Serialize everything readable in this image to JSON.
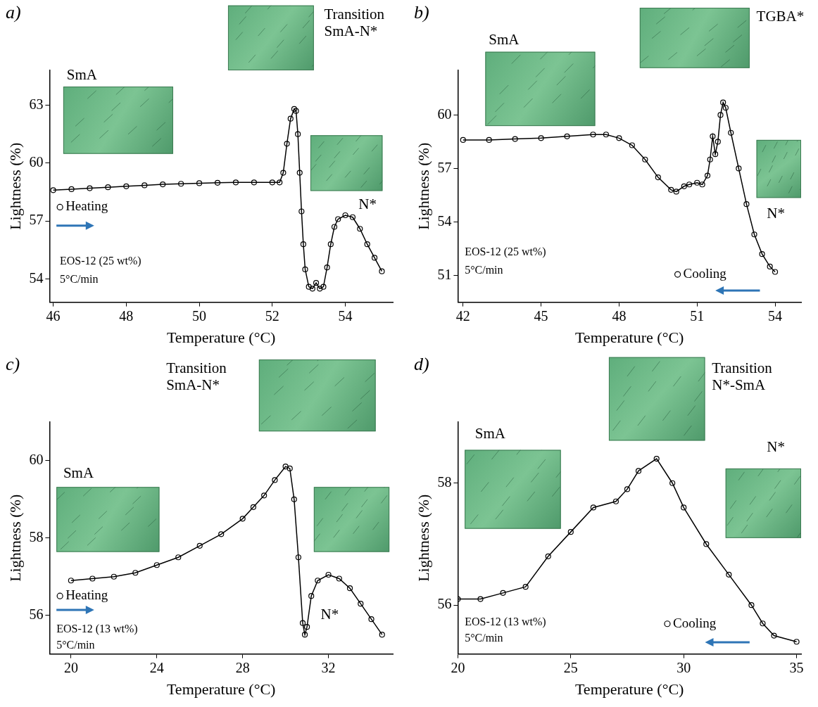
{
  "chart_data": [
    {
      "type": "scatter",
      "panel_label": "a)",
      "x_label": "Temperature (°C)",
      "y_label": "Lightness (%)",
      "xlim": [
        45.9,
        55.3
      ],
      "xticks": [
        46,
        48,
        50,
        52,
        54
      ],
      "ylim": [
        52.8,
        64.8
      ],
      "yticks": [
        54,
        57,
        60,
        63
      ],
      "grid": false,
      "annotations": [
        "SmA",
        "Transition SmA-N*",
        "N*",
        "EOS-12 (25 wt%)",
        "5°C/min"
      ],
      "series": [
        {
          "name": "Heating",
          "color": "#000000",
          "marker": "circle_open",
          "line_style": "solid",
          "x": [
            46,
            46.5,
            47,
            47.5,
            48,
            48.5,
            49,
            49.5,
            50,
            50.5,
            51,
            51.5,
            52,
            52.2,
            52.3,
            52.4,
            52.5,
            52.6,
            52.65,
            52.7,
            52.75,
            52.8,
            52.85,
            52.9,
            53.0,
            53.1,
            53.2,
            53.3,
            53.4,
            53.5,
            53.6,
            53.7,
            53.8,
            54.0,
            54.2,
            54.4,
            54.6,
            54.8,
            55
          ],
          "values": [
            58.6,
            58.65,
            58.7,
            58.75,
            58.8,
            58.85,
            58.9,
            58.93,
            58.96,
            58.98,
            59.0,
            59.0,
            59.0,
            59.0,
            59.5,
            61.0,
            62.3,
            62.8,
            62.7,
            61.5,
            59.5,
            57.5,
            55.8,
            54.5,
            53.6,
            53.5,
            53.8,
            53.5,
            53.6,
            54.6,
            55.8,
            56.7,
            57.1,
            57.3,
            57.2,
            56.6,
            55.8,
            55.1,
            54.4
          ]
        }
      ]
    },
    {
      "type": "scatter",
      "panel_label": "b)",
      "x_label": "Temperature (°C)",
      "y_label": "Lightness (%)",
      "xlim": [
        41.8,
        55
      ],
      "xticks": [
        42,
        45,
        48,
        51,
        54
      ],
      "ylim": [
        49.5,
        62.5
      ],
      "yticks": [
        51,
        54,
        57,
        60
      ],
      "grid": false,
      "annotations": [
        "SmA",
        "TGBA*",
        "N*",
        "EOS-12 (25 wt%)",
        "5°C/min"
      ],
      "series": [
        {
          "name": "Cooling",
          "color": "#000000",
          "marker": "circle_open",
          "line_style": "solid",
          "x": [
            42,
            43,
            44,
            45,
            46,
            47,
            47.5,
            48,
            48.5,
            49,
            49.5,
            50,
            50.2,
            50.5,
            50.7,
            51,
            51.2,
            51.4,
            51.5,
            51.6,
            51.7,
            51.8,
            51.9,
            52.0,
            52.1,
            52.3,
            52.6,
            52.9,
            53.2,
            53.5,
            53.8,
            54
          ],
          "values": [
            58.6,
            58.6,
            58.65,
            58.7,
            58.8,
            58.9,
            58.9,
            58.7,
            58.3,
            57.5,
            56.5,
            55.8,
            55.7,
            56.0,
            56.1,
            56.2,
            56.1,
            56.6,
            57.5,
            58.8,
            57.8,
            58.5,
            60.0,
            60.7,
            60.4,
            59.0,
            57.0,
            55.0,
            53.3,
            52.2,
            51.5,
            51.2
          ]
        }
      ]
    },
    {
      "type": "scatter",
      "panel_label": "c)",
      "x_label": "Temperature (°C)",
      "y_label": "Lightness (%)",
      "xlim": [
        19,
        35
      ],
      "xticks": [
        20,
        24,
        28,
        32
      ],
      "ylim": [
        55,
        61
      ],
      "yticks": [
        56,
        58,
        60
      ],
      "grid": false,
      "annotations": [
        "SmA",
        "Transition SmA-N*",
        "N*",
        "EOS-12 (13 wt%)",
        "5°C/min"
      ],
      "series": [
        {
          "name": "Heating",
          "color": "#000000",
          "marker": "circle_open",
          "line_style": "solid",
          "x": [
            20,
            21,
            22,
            23,
            24,
            25,
            26,
            27,
            28,
            28.5,
            29,
            29.5,
            30,
            30.2,
            30.4,
            30.6,
            30.8,
            30.9,
            31,
            31.2,
            31.5,
            32,
            32.5,
            33,
            33.5,
            34,
            34.5
          ],
          "values": [
            56.9,
            56.95,
            57.0,
            57.1,
            57.3,
            57.5,
            57.8,
            58.1,
            58.5,
            58.8,
            59.1,
            59.5,
            59.85,
            59.8,
            59.0,
            57.5,
            55.8,
            55.5,
            55.7,
            56.5,
            56.9,
            57.05,
            56.95,
            56.7,
            56.3,
            55.9,
            55.5
          ]
        }
      ]
    },
    {
      "type": "scatter",
      "panel_label": "d)",
      "x_label": "Temperature (°C)",
      "y_label": "Lightness (%)",
      "xlim": [
        20,
        35.2
      ],
      "xticks": [
        20,
        25,
        30,
        35
      ],
      "ylim": [
        55.2,
        59
      ],
      "yticks": [
        56,
        58
      ],
      "grid": false,
      "annotations": [
        "SmA",
        "Transition N*-SmA",
        "N*",
        "EOS-12 (13 wt%)",
        "5°C/min"
      ],
      "series": [
        {
          "name": "Cooling",
          "color": "#000000",
          "marker": "circle_open",
          "line_style": "solid",
          "x": [
            20,
            21,
            22,
            23,
            24,
            25,
            26,
            27,
            27.5,
            28,
            28.8,
            29.5,
            30,
            31,
            32,
            33,
            33.5,
            34,
            35
          ],
          "values": [
            56.1,
            56.1,
            56.2,
            56.3,
            56.8,
            57.2,
            57.6,
            57.7,
            57.9,
            58.2,
            58.4,
            58.0,
            57.6,
            57.0,
            56.5,
            56.0,
            55.7,
            55.5,
            55.4
          ]
        }
      ]
    }
  ]
}
